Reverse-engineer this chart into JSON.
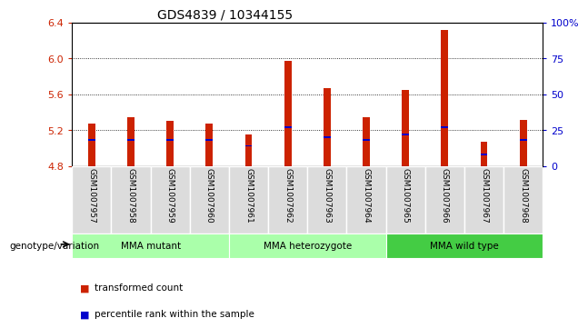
{
  "title": "GDS4839 / 10344155",
  "samples": [
    "GSM1007957",
    "GSM1007958",
    "GSM1007959",
    "GSM1007960",
    "GSM1007961",
    "GSM1007962",
    "GSM1007963",
    "GSM1007964",
    "GSM1007965",
    "GSM1007966",
    "GSM1007967",
    "GSM1007968"
  ],
  "red_values": [
    5.27,
    5.34,
    5.3,
    5.27,
    5.15,
    5.97,
    5.67,
    5.34,
    5.65,
    6.32,
    5.07,
    5.31
  ],
  "blue_values_pct": [
    18,
    18,
    18,
    18,
    14,
    27,
    20,
    18,
    22,
    27,
    8,
    18
  ],
  "y_min": 4.8,
  "y_max": 6.4,
  "y_ticks": [
    4.8,
    5.2,
    5.6,
    6.0,
    6.4
  ],
  "y2_ticks": [
    0,
    25,
    50,
    75,
    100
  ],
  "y2_tick_labels": [
    "0",
    "25",
    "50",
    "75",
    "100%"
  ],
  "grid_values": [
    5.2,
    5.6,
    6.0
  ],
  "group_ranges": [
    [
      0,
      3
    ],
    [
      4,
      7
    ],
    [
      8,
      11
    ]
  ],
  "group_labels": [
    "MMA mutant",
    "MMA heterozygote",
    "MMA wild type"
  ],
  "group_colors": [
    "#AAFFAA",
    "#AAFFAA",
    "#44CC44"
  ],
  "bar_width": 0.18,
  "red_color": "#CC2200",
  "blue_color": "#0000CC",
  "bg_plot": "#FFFFFF",
  "bg_sample_col": "#DCDCDC",
  "legend_red": "transformed count",
  "legend_blue": "percentile rank within the sample",
  "left_label": "genotype/variation",
  "ytick_color": "#CC2200",
  "y2tick_color": "#0000CC",
  "spine_color": "#000000"
}
